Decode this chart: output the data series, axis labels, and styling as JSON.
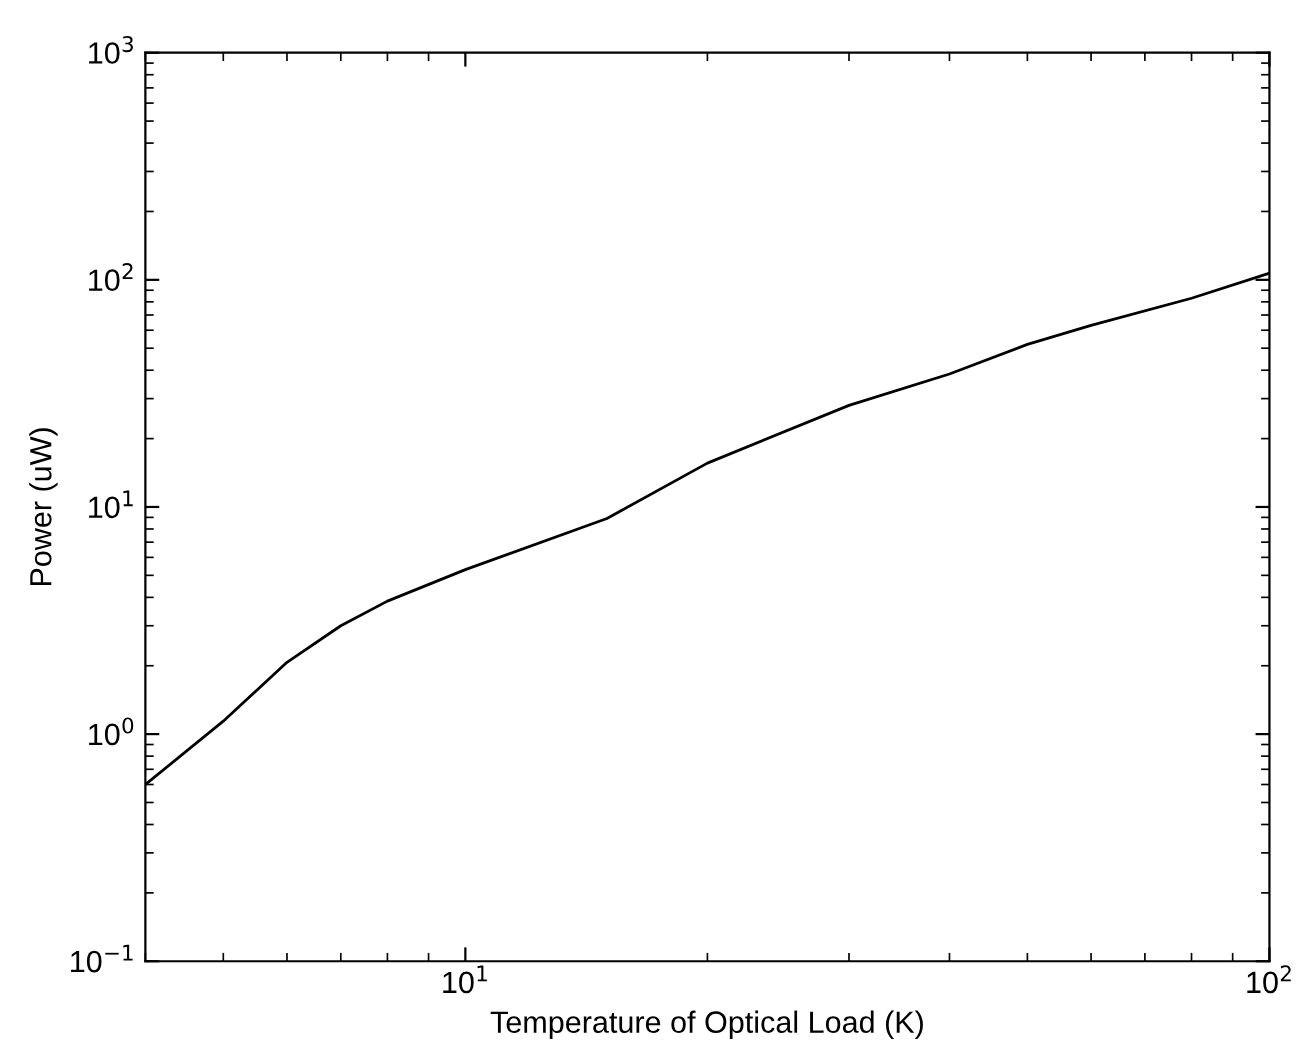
{
  "chart_data": {
    "type": "line",
    "xlabel": "Temperature of Optical Load (K)",
    "ylabel": "Power (uW)",
    "log": "xy",
    "grid": false,
    "legend": false,
    "marker": "none",
    "line_style": "solid",
    "xlim": [
      4,
      100
    ],
    "ylim": [
      0.1,
      1000
    ],
    "xticks": [
      {
        "value": 10,
        "label": "10$^{1}$"
      },
      {
        "value": 100,
        "label": "10$^{2}$"
      }
    ],
    "yticks": [
      {
        "value": 0.1,
        "label": "10$^{−1}$"
      },
      {
        "value": 1,
        "label": "10$^{0}$"
      },
      {
        "value": 10,
        "label": "10$^{1}$"
      },
      {
        "value": 100,
        "label": "10$^{2}$"
      },
      {
        "value": 1000,
        "label": "10$^{3}$"
      }
    ],
    "x": [
      4,
      5,
      6,
      7,
      8,
      10,
      15,
      20,
      30,
      40,
      50,
      60,
      80,
      100
    ],
    "series": [
      {
        "color": "#000000",
        "values": [
          0.6,
          1.14,
          2.07,
          3.0,
          3.85,
          5.3,
          8.9,
          15.6,
          28,
          38.5,
          52,
          63,
          83,
          107
        ]
      }
    ]
  }
}
